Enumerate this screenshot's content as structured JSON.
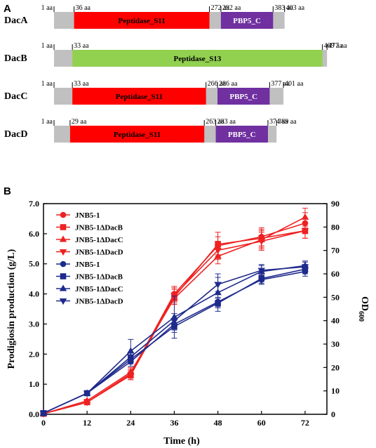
{
  "figure": {
    "panel_a_letter": "A",
    "panel_b_letter": "B"
  },
  "colors": {
    "gray": "#c0c0c0",
    "peptidase_s11": "#ff0000",
    "peptidase_s13": "#92d050",
    "pbp5_c": "#7030a0",
    "red_series": "#ee2222",
    "blue_series": "#1f2a8c"
  },
  "domains": [
    {
      "name": "DacA",
      "length": 403,
      "boundaries": [
        {
          "label": "1 aa",
          "aa": 1
        },
        {
          "label": "36 aa",
          "aa": 36
        },
        {
          "label": "272 aa",
          "aa": 272
        },
        {
          "label": "292 aa",
          "aa": 292
        },
        {
          "label": "383 aa",
          "aa": 383
        },
        {
          "label": "403 aa",
          "aa": 403
        }
      ],
      "blocks": [
        {
          "label": "Peptidase_S11",
          "start": 36,
          "end": 272,
          "color": "#ff0000",
          "text_color": "#000000"
        },
        {
          "label": "PBP5_C",
          "start": 292,
          "end": 383,
          "color": "#7030a0",
          "text_color": "#ffffff"
        }
      ]
    },
    {
      "name": "DacB",
      "length": 477,
      "boundaries": [
        {
          "label": "1 aa",
          "aa": 1
        },
        {
          "label": "33 aa",
          "aa": 33
        },
        {
          "label": "469 aa",
          "aa": 469
        },
        {
          "label": "477 aa",
          "aa": 477
        }
      ],
      "blocks": [
        {
          "label": "Peptidase_S13",
          "start": 33,
          "end": 469,
          "color": "#92d050",
          "text_color": "#000000"
        }
      ]
    },
    {
      "name": "DacC",
      "length": 401,
      "boundaries": [
        {
          "label": "1 aa",
          "aa": 1
        },
        {
          "label": "33 aa",
          "aa": 33
        },
        {
          "label": "266 aa",
          "aa": 266
        },
        {
          "label": "286 aa",
          "aa": 286
        },
        {
          "label": "377 aa",
          "aa": 377
        },
        {
          "label": "401 aa",
          "aa": 401
        }
      ],
      "blocks": [
        {
          "label": "Peptidase_S11",
          "start": 33,
          "end": 266,
          "color": "#ff0000",
          "text_color": "#000000"
        },
        {
          "label": "PBP5_C",
          "start": 286,
          "end": 377,
          "color": "#7030a0",
          "text_color": "#ffffff"
        }
      ]
    },
    {
      "name": "DacD",
      "length": 389,
      "boundaries": [
        {
          "label": "1 aa",
          "aa": 1
        },
        {
          "label": "29 aa",
          "aa": 29
        },
        {
          "label": "263 aa",
          "aa": 263
        },
        {
          "label": "283 aa",
          "aa": 283
        },
        {
          "label": "374 aa",
          "aa": 374
        },
        {
          "label": "389 aa",
          "aa": 389
        }
      ],
      "blocks": [
        {
          "label": "Peptidase_S11",
          "start": 29,
          "end": 263,
          "color": "#ff0000",
          "text_color": "#000000"
        },
        {
          "label": "PBP5_C",
          "start": 283,
          "end": 374,
          "color": "#7030a0",
          "text_color": "#ffffff"
        }
      ]
    }
  ],
  "chart_data": {
    "type": "line",
    "title": "",
    "xlabel": "Time (h)",
    "ylabel": "Prodigiosin production (g/L)",
    "y2label_main": "OD",
    "y2label_sub": "600",
    "x": [
      0,
      12,
      24,
      36,
      48,
      60,
      72
    ],
    "xticks": [
      "0",
      "12",
      "24",
      "36",
      "48",
      "60",
      "72"
    ],
    "ylim": [
      0,
      7
    ],
    "yticks": [
      "0.0",
      "1.0",
      "2.0",
      "3.0",
      "4.0",
      "5.0",
      "6.0",
      "7.0"
    ],
    "y2lim": [
      0,
      90
    ],
    "y2ticks": [
      "0",
      "10",
      "20",
      "30",
      "40",
      "50",
      "60",
      "70",
      "80",
      "90"
    ],
    "legend_position": "top-left",
    "series": [
      {
        "name": "JNB5-1",
        "axis": "left",
        "color": "#ee2222",
        "marker": "circle",
        "values": [
          0.02,
          0.4,
          1.35,
          4.0,
          5.6,
          5.9,
          6.35
        ],
        "errors": [
          0.02,
          0.05,
          0.15,
          0.25,
          0.3,
          0.3,
          0.35
        ]
      },
      {
        "name": "JNB5-1ΔDacB",
        "axis": "left",
        "color": "#ee2222",
        "marker": "square",
        "values": [
          0.02,
          0.4,
          1.3,
          3.9,
          5.65,
          5.85,
          6.1
        ],
        "errors": [
          0.02,
          0.05,
          0.15,
          0.25,
          0.4,
          0.3,
          0.25
        ]
      },
      {
        "name": "JNB5-1ΔDacC",
        "axis": "left",
        "color": "#ee2222",
        "marker": "triangle-up",
        "values": [
          0.02,
          0.45,
          1.4,
          3.85,
          5.25,
          5.8,
          6.55
        ],
        "errors": [
          0.02,
          0.05,
          0.15,
          0.2,
          0.25,
          0.3,
          0.3
        ]
      },
      {
        "name": "JNB5-1ΔDacD",
        "axis": "left",
        "color": "#ee2222",
        "marker": "triangle-down",
        "values": [
          0.02,
          0.4,
          1.3,
          3.95,
          5.45,
          5.75,
          6.1
        ],
        "errors": [
          0.02,
          0.05,
          0.15,
          0.25,
          0.3,
          0.3,
          0.25
        ]
      },
      {
        "name": "JNB5-1",
        "axis": "right",
        "color": "#1f2a8c",
        "marker": "circle",
        "values": [
          0.5,
          9.0,
          22.5,
          38.5,
          48.0,
          57.5,
          61.0
        ],
        "errors": [
          0.5,
          0.8,
          2.0,
          2.5,
          2.0,
          2.0,
          2.0
        ]
      },
      {
        "name": "JNB5-1ΔDacB",
        "axis": "right",
        "color": "#1f2a8c",
        "marker": "square",
        "values": [
          0.5,
          9.0,
          23.5,
          37.5,
          47.5,
          58.0,
          62.0
        ],
        "errors": [
          0.5,
          0.8,
          2.0,
          2.5,
          2.0,
          2.0,
          2.0
        ]
      },
      {
        "name": "JNB5-1ΔDacC",
        "axis": "right",
        "color": "#1f2a8c",
        "marker": "triangle-up",
        "values": [
          0.5,
          9.0,
          27.0,
          41.5,
          52.0,
          61.0,
          63.5
        ],
        "errors": [
          0.5,
          1.0,
          5.0,
          9.0,
          8.0,
          3.0,
          2.0
        ]
      },
      {
        "name": "JNB5-1ΔDacD",
        "axis": "right",
        "color": "#1f2a8c",
        "marker": "triangle-down",
        "values": [
          0.5,
          9.0,
          24.5,
          40.0,
          55.5,
          61.5,
          63.0
        ],
        "errors": [
          0.5,
          0.8,
          2.0,
          3.0,
          3.0,
          2.0,
          2.0
        ]
      }
    ]
  }
}
